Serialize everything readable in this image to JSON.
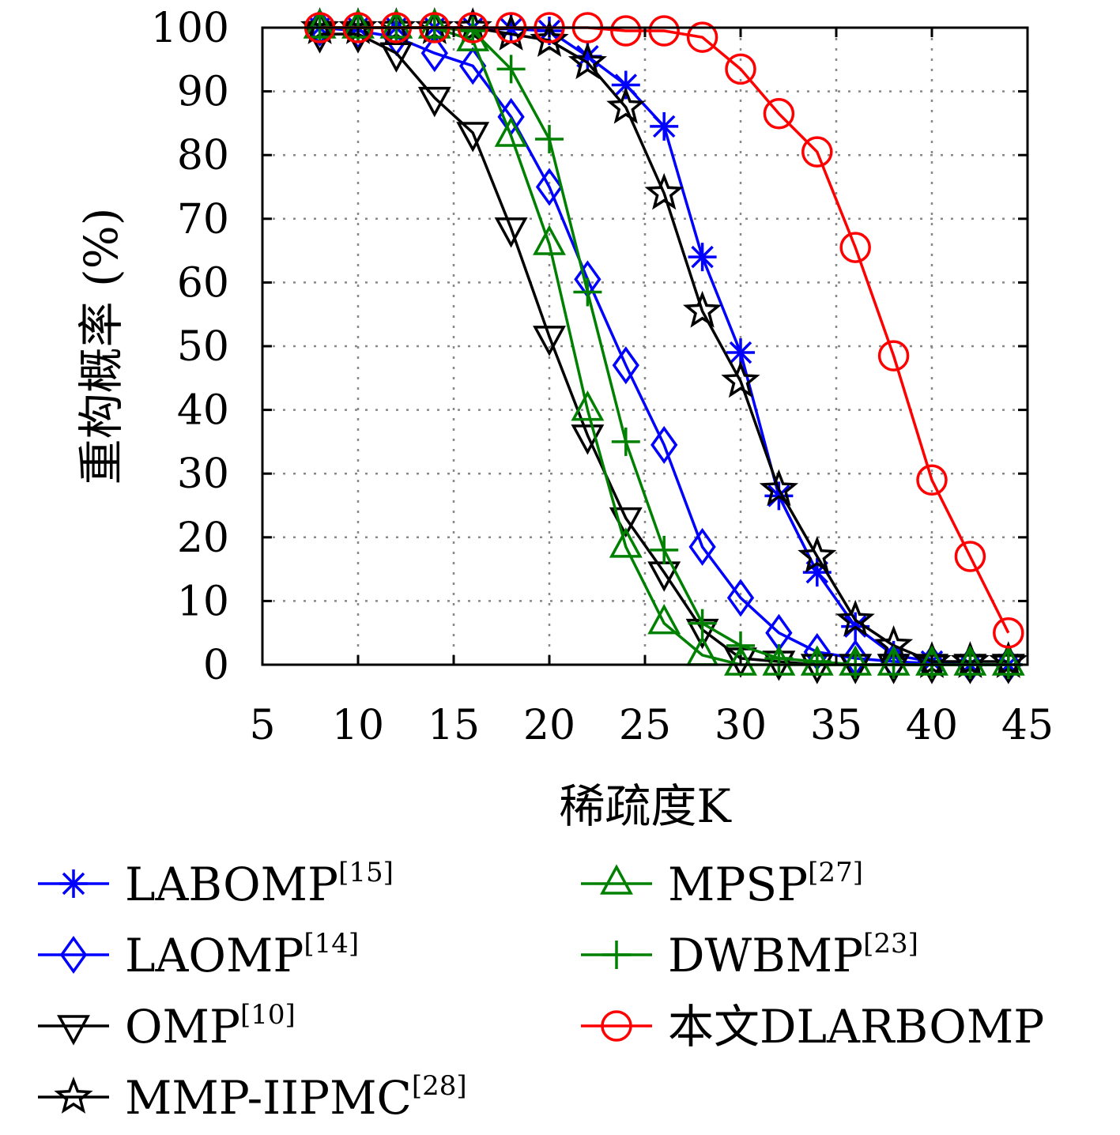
{
  "chart_data": {
    "type": "line",
    "xlabel": "稀疏度K",
    "ylabel": "重构概率 (%)",
    "xlim": [
      5,
      45
    ],
    "ylim": [
      0,
      100
    ],
    "xticks": [
      "5",
      "10",
      "15",
      "20",
      "25",
      "30",
      "35",
      "40",
      "45"
    ],
    "yticks": [
      "0",
      "10",
      "20",
      "30",
      "40",
      "50",
      "60",
      "70",
      "80",
      "90",
      "100"
    ],
    "grid": true,
    "legend_position": "below",
    "series": [
      {
        "name": "LABOMP",
        "ref": "[15]",
        "color": "#0000ff",
        "marker": "asterisk",
        "x": [
          8,
          10,
          12,
          14,
          16,
          18,
          20,
          22,
          24,
          26,
          28,
          30,
          32,
          34,
          36,
          38,
          40,
          42,
          44
        ],
        "y": [
          100,
          100,
          100,
          100,
          100,
          99.8,
          99.5,
          95.5,
          91,
          84.5,
          64,
          49,
          26.5,
          14.5,
          6,
          1.5,
          0.5,
          0,
          0
        ]
      },
      {
        "name": "LAOMP",
        "ref": "[14]",
        "color": "#0000ff",
        "marker": "diamond",
        "x": [
          8,
          10,
          12,
          14,
          16,
          18,
          20,
          22,
          24,
          26,
          28,
          30,
          32,
          34,
          36,
          38,
          40,
          42,
          44
        ],
        "y": [
          100,
          99.5,
          98.5,
          96,
          94,
          86,
          75,
          60.5,
          47,
          34.5,
          18.5,
          10.5,
          5,
          2,
          1,
          0.5,
          0.2,
          0,
          0
        ]
      },
      {
        "name": "OMP",
        "ref": "[10]",
        "color": "#000000",
        "marker": "triangle-down",
        "x": [
          8,
          10,
          12,
          14,
          16,
          18,
          20,
          22,
          24,
          26,
          28,
          30,
          32,
          34,
          36,
          38,
          40,
          42,
          44
        ],
        "y": [
          99,
          99,
          96,
          89,
          83.5,
          68.5,
          51.5,
          36,
          23,
          14.5,
          5.5,
          1,
          0.5,
          0,
          0,
          0,
          0,
          0,
          0
        ]
      },
      {
        "name": "MMP-IIPMC",
        "ref": "[28]",
        "color": "#000000",
        "marker": "star",
        "x": [
          8,
          10,
          12,
          14,
          16,
          18,
          20,
          22,
          24,
          26,
          28,
          30,
          32,
          34,
          36,
          38,
          40,
          42,
          44
        ],
        "y": [
          100,
          100,
          100,
          100,
          100,
          99,
          98,
          94.5,
          87.5,
          74,
          55.5,
          44.5,
          27.5,
          17,
          7,
          3,
          0.5,
          0.5,
          0.5
        ]
      },
      {
        "name": "MPSP",
        "ref": "[27]",
        "color": "#008000",
        "marker": "triangle-up",
        "x": [
          8,
          10,
          12,
          14,
          16,
          18,
          20,
          22,
          24,
          26,
          28,
          30,
          32,
          34,
          36,
          38,
          40,
          42,
          44
        ],
        "y": [
          100,
          100,
          100,
          100,
          98,
          83,
          66,
          40,
          18.5,
          6.5,
          1.5,
          0,
          0,
          0,
          0,
          0,
          0,
          0,
          0
        ]
      },
      {
        "name": "DWBMP",
        "ref": "[23]",
        "color": "#008000",
        "marker": "plus",
        "x": [
          8,
          10,
          12,
          14,
          16,
          18,
          20,
          22,
          24,
          26,
          28,
          30,
          32,
          34,
          36,
          38,
          40,
          42,
          44
        ],
        "y": [
          100,
          100,
          100,
          100,
          99.5,
          93.5,
          82.5,
          58.5,
          35,
          18,
          6.5,
          3,
          1,
          0.5,
          0,
          0,
          0,
          0,
          0
        ]
      },
      {
        "name": "本文DLARBOMP",
        "ref": "",
        "color": "#ff0000",
        "marker": "circle",
        "x": [
          8,
          10,
          12,
          14,
          16,
          18,
          20,
          22,
          24,
          26,
          28,
          30,
          32,
          34,
          36,
          38,
          40,
          42,
          44
        ],
        "y": [
          100,
          100,
          100,
          100,
          100,
          100,
          100,
          100,
          99.5,
          99.5,
          98.5,
          93.5,
          86.5,
          80.5,
          65.5,
          48.5,
          29,
          17,
          5
        ]
      }
    ]
  }
}
